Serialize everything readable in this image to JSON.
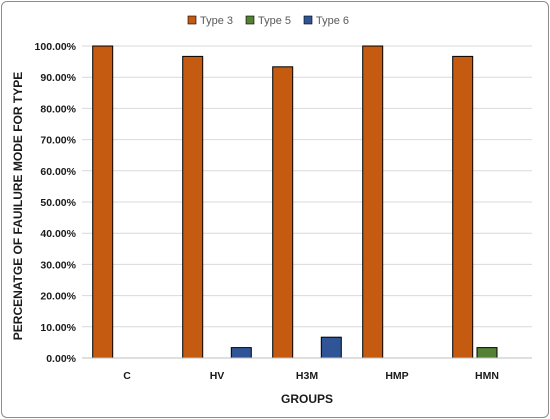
{
  "chart_data": {
    "type": "bar",
    "title": "",
    "xlabel": "GROUPS",
    "ylabel": "PERCENATGE OF FAUILURE MODE FOR TYPE",
    "categories": [
      "C",
      "HV",
      "H3M",
      "HMP",
      "HMN"
    ],
    "series": [
      {
        "name": "Type 3",
        "color": "#c55a11",
        "values": [
          100.0,
          96.67,
          93.33,
          100.0,
          96.67
        ]
      },
      {
        "name": "Type 5",
        "color": "#548235",
        "values": [
          0,
          0,
          0,
          0,
          3.33
        ]
      },
      {
        "name": "Type 6",
        "color": "#2f5597",
        "values": [
          0,
          3.33,
          6.67,
          0,
          0
        ]
      }
    ],
    "ylim": [
      0,
      100
    ],
    "yticks": [
      0,
      10,
      20,
      30,
      40,
      50,
      60,
      70,
      80,
      90,
      100
    ],
    "ytick_format": "percent-2dp",
    "grid": true,
    "legend_position": "top-center"
  }
}
